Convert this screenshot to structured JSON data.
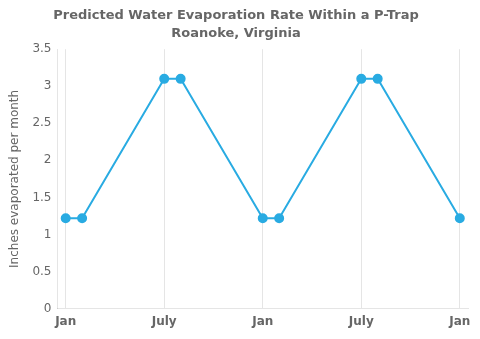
{
  "chart_data": {
    "type": "line",
    "title": "Predicted Water Evaporation Rate Within a P-Trap",
    "subtitle": "Roanoke, Virginia",
    "y_label": "Inches evaporated per month",
    "x": [
      0,
      1,
      6,
      7,
      12,
      13,
      18,
      19,
      24
    ],
    "values": [
      1.22,
      1.22,
      3.1,
      3.1,
      1.22,
      1.22,
      3.1,
      3.1,
      1.22
    ],
    "color": "#29ABE2",
    "marker": "circle",
    "xlim": [
      -0.5,
      24.5
    ],
    "xticks": [
      {
        "value": 0,
        "label": "Jan"
      },
      {
        "value": 6,
        "label": "July"
      },
      {
        "value": 12,
        "label": "Jan"
      },
      {
        "value": 18,
        "label": "July"
      },
      {
        "value": 24,
        "label": "Jan"
      }
    ],
    "ylim": [
      0,
      3.5
    ],
    "yticks": [
      0,
      0.5,
      1.0,
      1.5,
      2.0,
      2.5,
      3.0,
      3.5
    ],
    "grid": "x"
  }
}
